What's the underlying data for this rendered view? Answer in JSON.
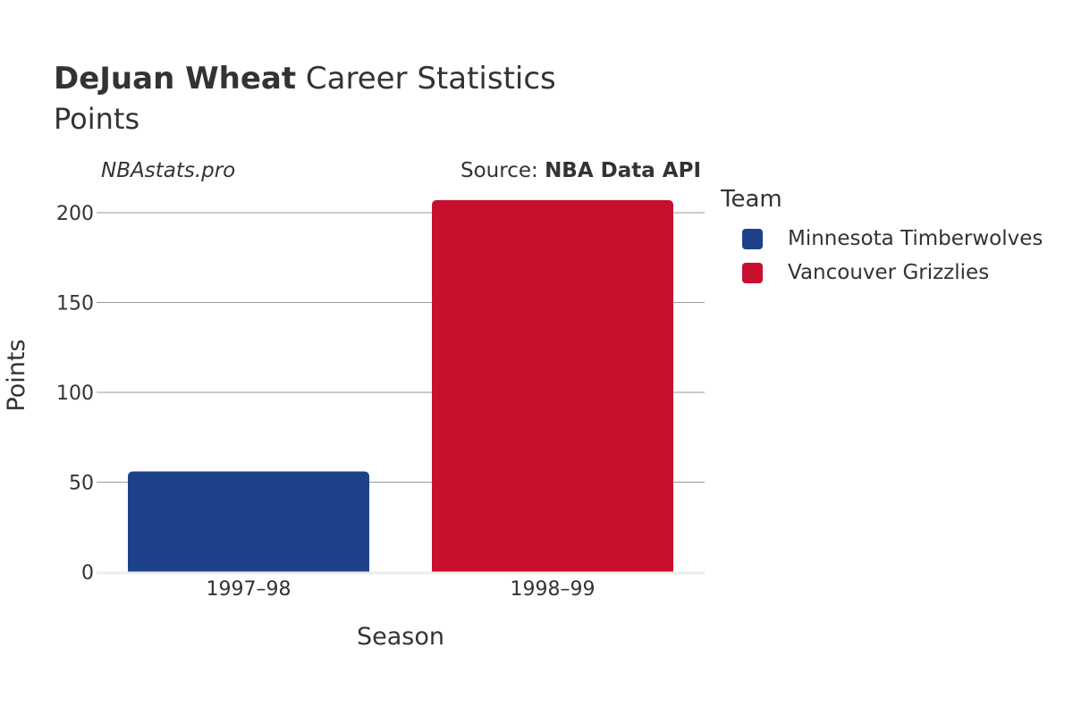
{
  "header": {
    "player": "DeJuan Wheat",
    "title_rest": " Career Statistics",
    "subtitle": "Points",
    "watermark": "NBAstats.pro",
    "source_prefix": "Source: ",
    "source_name": "NBA Data API"
  },
  "legend": {
    "title": "Team",
    "items": [
      {
        "label": "Minnesota Timberwolves",
        "color": "#1D428A"
      },
      {
        "label": "Vancouver Grizzlies",
        "color": "#C8102E"
      }
    ]
  },
  "chart_data": {
    "type": "bar",
    "categories": [
      "1997–98",
      "1998–99"
    ],
    "series": [
      {
        "name": "Minnesota Timberwolves",
        "values": [
          56,
          null
        ],
        "color": "#1D428A"
      },
      {
        "name": "Vancouver Grizzlies",
        "values": [
          null,
          207
        ],
        "color": "#C8102E"
      }
    ],
    "xlabel": "Season",
    "ylabel": "Points",
    "ylim": [
      0,
      210
    ],
    "yticks": [
      0,
      50,
      100,
      150,
      200
    ],
    "grid": true,
    "legend_position": "right"
  }
}
